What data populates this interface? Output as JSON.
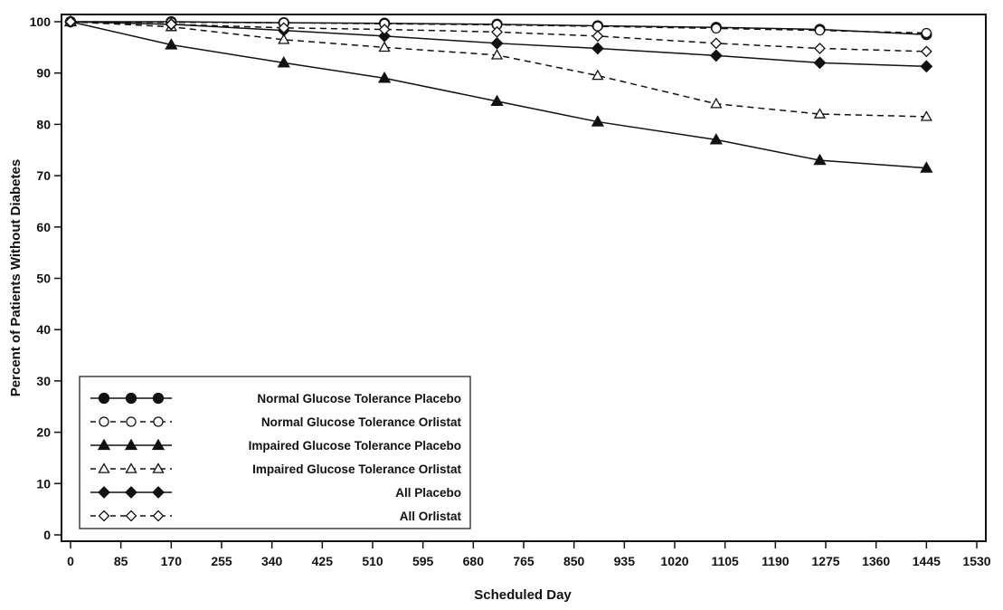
{
  "chart_data": {
    "type": "line",
    "xlabel": "Scheduled Day",
    "ylabel": "Percent of Patients Without Diabetes",
    "xlim": [
      0,
      1530
    ],
    "ylim": [
      0,
      100
    ],
    "x_ticks": [
      0,
      85,
      170,
      255,
      340,
      425,
      510,
      595,
      680,
      765,
      850,
      935,
      1020,
      1105,
      1190,
      1275,
      1360,
      1445,
      1530
    ],
    "y_ticks": [
      0,
      10,
      20,
      30,
      40,
      50,
      60,
      70,
      80,
      90,
      100
    ],
    "grid": false,
    "legend_position": "bottom-left",
    "series": [
      {
        "name": "Normal Glucose Tolerance Placebo",
        "marker": "filled-circle",
        "dashed": false,
        "color": "#111111",
        "x": [
          0,
          170,
          360,
          530,
          720,
          890,
          1090,
          1265,
          1445
        ],
        "y": [
          100,
          100,
          99.8,
          99.7,
          99.5,
          99.2,
          98.9,
          98.5,
          97.5
        ]
      },
      {
        "name": "Normal Glucose Tolerance Orlistat",
        "marker": "open-circle",
        "dashed": true,
        "color": "#111111",
        "x": [
          0,
          170,
          360,
          530,
          720,
          890,
          1090,
          1265,
          1445
        ],
        "y": [
          100,
          99.9,
          99.8,
          99.6,
          99.4,
          99.1,
          98.7,
          98.3,
          97.8
        ]
      },
      {
        "name": "Impaired Glucose Tolerance Placebo",
        "marker": "filled-triangle",
        "dashed": false,
        "color": "#111111",
        "x": [
          0,
          170,
          360,
          530,
          720,
          890,
          1090,
          1265,
          1445
        ],
        "y": [
          100,
          95.5,
          92,
          89,
          84.5,
          80.5,
          77,
          73,
          71.5
        ]
      },
      {
        "name": "Impaired Glucose Tolerance Orlistat",
        "marker": "open-triangle",
        "dashed": true,
        "color": "#111111",
        "x": [
          0,
          170,
          360,
          530,
          720,
          890,
          1090,
          1265,
          1445
        ],
        "y": [
          100,
          99,
          96.5,
          95,
          93.5,
          89.5,
          84,
          82,
          81.5
        ]
      },
      {
        "name": "All Placebo",
        "marker": "filled-diamond",
        "dashed": false,
        "color": "#111111",
        "x": [
          0,
          170,
          360,
          530,
          720,
          890,
          1090,
          1265,
          1445
        ],
        "y": [
          100,
          99.5,
          98.3,
          97.2,
          95.8,
          94.8,
          93.4,
          92,
          91.3
        ]
      },
      {
        "name": "All Orlistat",
        "marker": "open-diamond",
        "dashed": true,
        "color": "#111111",
        "x": [
          0,
          170,
          360,
          530,
          720,
          890,
          1090,
          1265,
          1445
        ],
        "y": [
          100,
          99.5,
          98.8,
          98.5,
          98,
          97.2,
          95.8,
          94.8,
          94.2
        ]
      }
    ]
  }
}
